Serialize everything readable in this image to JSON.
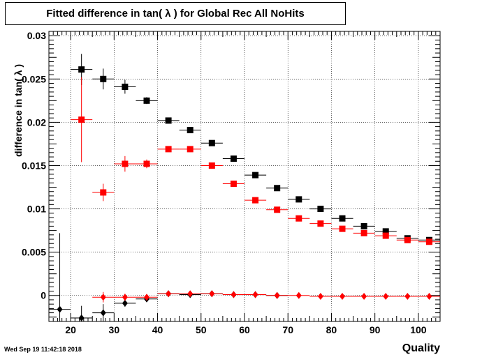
{
  "title": "Fitted difference in tan( λ ) for Global Rec All NoHits",
  "footer": "Wed Sep 19 11:42:18 2018",
  "chart_data": {
    "type": "scatter",
    "xlabel": "Quality",
    "ylabel": "difference in tan( λ )",
    "xlim": [
      15,
      105
    ],
    "ylim": [
      -0.003,
      0.0305
    ],
    "grid": true,
    "x_ticks": [
      20,
      30,
      40,
      50,
      60,
      70,
      80,
      90,
      100
    ],
    "x_tick_labels": [
      "20",
      "30",
      "40",
      "50",
      "60",
      "70",
      "80",
      "90",
      "100"
    ],
    "y_ticks": [
      0,
      0.005,
      0.01,
      0.015,
      0.02,
      0.025,
      0.03
    ],
    "y_tick_labels": [
      "0",
      "0.005",
      "0.01",
      "0.015",
      "0.02",
      "0.025",
      "0.03"
    ],
    "x_bin_halfwidth": 2.5,
    "series": [
      {
        "color": "#000000",
        "marker": "square",
        "x": [
          22.5,
          27.5,
          32.5,
          37.5,
          42.5,
          47.5,
          52.5,
          57.5,
          62.5,
          67.5,
          72.5,
          77.5,
          82.5,
          87.5,
          92.5,
          97.5,
          102.5
        ],
        "y": [
          0.0261,
          0.025,
          0.0241,
          0.0225,
          0.0202,
          0.0191,
          0.0176,
          0.0158,
          0.0139,
          0.0124,
          0.0111,
          0.01,
          0.0089,
          0.008,
          0.0074,
          0.0066,
          0.0064
        ],
        "yerr": [
          0.0018,
          0.0012,
          0.0008,
          0.0004,
          0.0003,
          0.0002,
          0.0002,
          0.0002,
          0.0002,
          0.0002,
          0.0002,
          0.0002,
          0.0002,
          0.0002,
          0.0002,
          0.0002,
          0.0002
        ]
      },
      {
        "color": "#ff0000",
        "marker": "square",
        "x": [
          22.5,
          27.5,
          32.5,
          37.5,
          42.5,
          47.5,
          52.5,
          57.5,
          62.5,
          67.5,
          72.5,
          77.5,
          82.5,
          87.5,
          92.5,
          97.5,
          102.5
        ],
        "y": [
          0.0203,
          0.0119,
          0.0152,
          0.0152,
          0.0169,
          0.0169,
          0.015,
          0.0129,
          0.011,
          0.0099,
          0.0089,
          0.0083,
          0.0077,
          0.0072,
          0.0069,
          0.0064,
          0.0062
        ],
        "yerr": [
          0.0049,
          0.001,
          0.0009,
          0.0005,
          0.0003,
          0.0002,
          0.0002,
          0.0002,
          0.0002,
          0.0002,
          0.0002,
          0.0002,
          0.0002,
          0.0002,
          0.0002,
          0.0002,
          0.0002
        ]
      },
      {
        "color": "#000000",
        "marker": "diamond",
        "x": [
          17.5,
          22.5,
          27.5,
          32.5,
          37.5,
          42.5,
          47.5,
          52.5,
          57.5,
          62.5,
          67.5
        ],
        "y": [
          -0.0016,
          -0.0026,
          -0.002,
          -0.0009,
          -0.0004,
          0.0002,
          0.0001,
          0.0002,
          0.0001,
          0.0001,
          0.0
        ],
        "yerr": [
          0.0088,
          0.0014,
          0.001,
          0.0004,
          0.0003,
          0.0001,
          0.0001,
          0.0001,
          0.0001,
          0.0001,
          0.0001
        ]
      },
      {
        "color": "#ff0000",
        "marker": "diamond",
        "x": [
          27.5,
          32.5,
          37.5,
          42.5,
          47.5,
          52.5,
          57.5,
          62.5,
          67.5,
          72.5,
          77.5,
          82.5,
          87.5,
          92.5,
          97.5,
          102.5
        ],
        "y": [
          -0.0002,
          -0.0002,
          -0.0002,
          0.0002,
          0.0002,
          0.0002,
          0.0001,
          0.0001,
          0.0,
          0.0,
          -0.0001,
          -0.0001,
          -0.0001,
          -0.0001,
          -0.0001,
          -0.0001
        ],
        "yerr": [
          0.0006,
          0.0004,
          0.0002,
          0.0001,
          0.0001,
          0.0001,
          0.0001,
          0.0001,
          0.0001,
          0.0001,
          0.0001,
          0.0001,
          0.0001,
          0.0001,
          0.0001,
          0.0001
        ]
      }
    ]
  }
}
